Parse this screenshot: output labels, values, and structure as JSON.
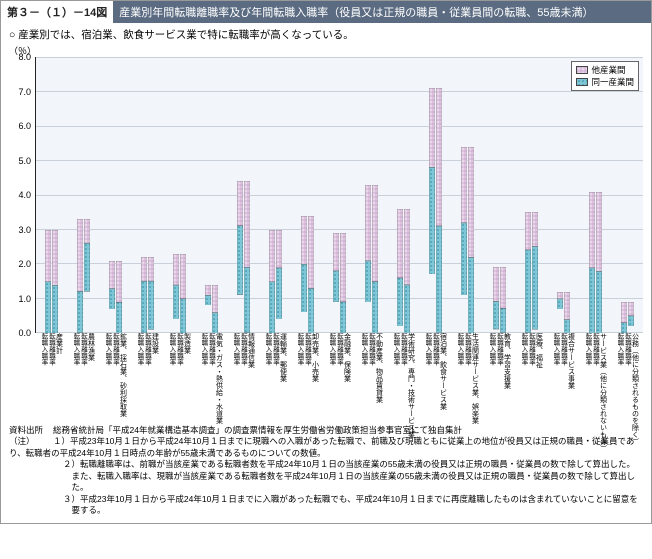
{
  "header": {
    "left": "第３－（１）－14図",
    "right": "産業別年間転職離職率及び年間転職入職率（役員又は正規の職員・従業員間の転職、55歳未満）"
  },
  "bullet": "産業別では、宿泊業、飲食サービス業で特に転職率が高くなっている。",
  "ylabel": "（％）",
  "chart": {
    "type": "stacked-bar",
    "ylim": [
      0,
      8
    ],
    "ytick_step": 1,
    "bg": "#f2f6fa",
    "grid_color": "#c8d0da",
    "color_same": "#7ec6d6",
    "color_other": "#e9d6e9",
    "pattern_same": "dots",
    "pattern_other": "grid",
    "legend": {
      "same": "同一産業間",
      "other": "他産業間"
    },
    "bars_per_group": [
      "転職入職率",
      "転職離職率"
    ],
    "groups": [
      {
        "cat": "産業計",
        "in": [
          1.5,
          3.0
        ],
        "out": [
          1.4,
          3.0
        ]
      },
      {
        "cat": "農林漁業",
        "in": [
          1.2,
          3.3
        ],
        "out": [
          1.4,
          2.1
        ]
      },
      {
        "cat": "鉱業、採石業、砂利採取業",
        "in": [
          0.6,
          1.4
        ],
        "out": [
          0.9,
          2.1
        ]
      },
      {
        "cat": "建設業",
        "in": [
          1.5,
          2.2
        ],
        "out": [
          1.4,
          2.1
        ]
      },
      {
        "cat": "製造業",
        "in": [
          1.0,
          1.9
        ],
        "out": [
          1.0,
          2.3
        ]
      },
      {
        "cat": "電気・ガス・熱供給・水道業",
        "in": [
          0.3,
          0.6
        ],
        "out": [
          0.6,
          1.4
        ]
      },
      {
        "cat": "情報通信業",
        "in": [
          2.0,
          3.3
        ],
        "out": [
          1.9,
          4.4
        ]
      },
      {
        "cat": "運輸業、郵便業",
        "in": [
          1.5,
          3.0
        ],
        "out": [
          1.5,
          2.6
        ]
      },
      {
        "cat": "卸売業、小売業",
        "in": [
          1.4,
          2.8
        ],
        "out": [
          1.3,
          3.4
        ]
      },
      {
        "cat": "金融業、保険業",
        "in": [
          0.9,
          2.0
        ],
        "out": [
          0.9,
          2.9
        ]
      },
      {
        "cat": "不動産業、物品賃貸業",
        "in": [
          1.2,
          3.4
        ],
        "out": [
          1.5,
          4.3
        ]
      },
      {
        "cat": "学術研究、専門・技術サービス業",
        "in": [
          1.4,
          3.4
        ],
        "out": [
          1.4,
          3.6
        ]
      },
      {
        "cat": "宿泊業、飲食サービス業",
        "in": [
          3.1,
          5.4
        ],
        "out": [
          3.1,
          7.1
        ]
      },
      {
        "cat": "生活関連サービス業、娯楽業",
        "in": [
          2.1,
          4.3
        ],
        "out": [
          2.2,
          5.4
        ]
      },
      {
        "cat": "教育、学習支援業",
        "in": [
          0.8,
          1.8
        ],
        "out": [
          0.7,
          1.9
        ]
      },
      {
        "cat": "医療、福祉",
        "in": [
          2.4,
          3.5
        ],
        "out": [
          2.4,
          3.4
        ]
      },
      {
        "cat": "複合サービス事業",
        "in": [
          0.3,
          0.5
        ],
        "out": [
          0.4,
          1.2
        ]
      },
      {
        "cat": "サービス業（他に分類されないもの）",
        "in": [
          1.9,
          4.1
        ],
        "out": [
          1.8,
          4.1
        ]
      },
      {
        "cat": "公務（他に分類されるものを除く）",
        "in": [
          0.3,
          0.9
        ],
        "out": [
          0.3,
          0.7
        ]
      }
    ]
  },
  "source": {
    "label1": "資料出所",
    "line1": "総務省統計局「平成24年就業構造基本調査」の調査票情報を厚生労働省労働政策担当参事官室にて独自集計",
    "label2": "（注）",
    "n1": "１）平成23年10月１日から平成24年10月１日までに現職への入職があった転職で、前職及び現職ともに従業上の地位が役員又は正規の職員・従業員であり、転職者の平成24年10月１日時点の年齢が55歳未満であるものについての数値。",
    "n2": "２）転職離職率は、前職が当該産業である転職者数を平成24年10月１日の当該産業の55歳未満の役員又は正規の職員・従業員の数で除して算出した。また、転職入職率は、現職が当該産業である転職者数を平成24年10月１日の当該産業の55歳未満の役員又は正規の職員・従業員の数で除して算出した。",
    "n3": "３）平成23年10月１日から平成24年10月１日までに入職があった転職でも、平成24年10月１日までに再度離職したものは含まれていないことに留意を要する。"
  }
}
